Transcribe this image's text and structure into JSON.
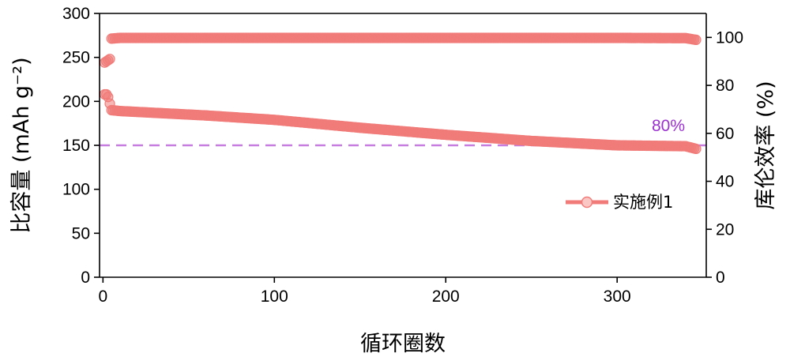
{
  "chart_data": {
    "type": "scatter",
    "xlabel": "循环圈数",
    "ylabel_left": "比容量 (mAh g⁻²)",
    "ylabel_right": "库伦效率 (%)",
    "xlim": [
      -2,
      352
    ],
    "ylim_left": [
      0,
      300
    ],
    "ylim_right": [
      0,
      110
    ],
    "x_ticks": [
      0,
      100,
      200,
      300
    ],
    "y_left_ticks": [
      0,
      50,
      100,
      150,
      200,
      250,
      300
    ],
    "y_right_ticks": [
      0,
      20,
      40,
      60,
      80,
      100
    ],
    "grid": false,
    "legend_position": "right-middle",
    "series": [
      {
        "name": "实施例1",
        "axis": "left",
        "color": "#f07b78",
        "points": [
          [
            1,
            208
          ],
          [
            2,
            208
          ],
          [
            3,
            205
          ],
          [
            5,
            190
          ],
          [
            10,
            189
          ],
          [
            40,
            186
          ],
          [
            60,
            184
          ],
          [
            100,
            179
          ],
          [
            150,
            170
          ],
          [
            200,
            162
          ],
          [
            250,
            155
          ],
          [
            300,
            150
          ],
          [
            340,
            149
          ],
          [
            346,
            146
          ]
        ]
      },
      {
        "axis": "right",
        "color": "#f07b78",
        "points": [
          [
            1,
            89.5
          ],
          [
            2,
            90
          ],
          [
            3,
            90.5
          ],
          [
            4,
            91
          ],
          [
            5,
            99.5
          ],
          [
            10,
            99.8
          ],
          [
            50,
            99.8
          ],
          [
            100,
            99.8
          ],
          [
            150,
            99.8
          ],
          [
            200,
            99.8
          ],
          [
            250,
            99.8
          ],
          [
            300,
            99.8
          ],
          [
            340,
            99.7
          ],
          [
            346,
            99.0
          ]
        ]
      }
    ],
    "reference_line": {
      "axis": "left",
      "y": 150,
      "label": "80%",
      "color": "#c77de0",
      "label_color": "#9b30d0",
      "style": "dashed"
    }
  }
}
